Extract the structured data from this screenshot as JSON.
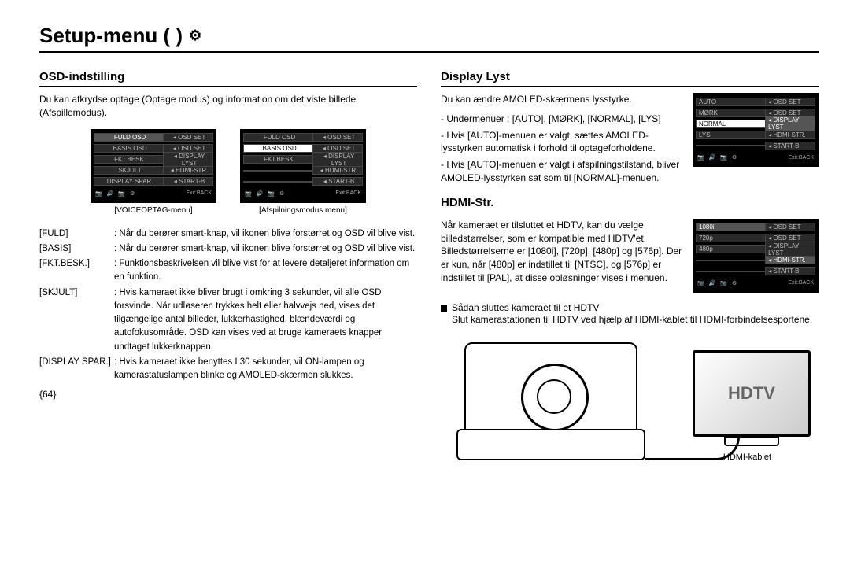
{
  "page": {
    "title": "Setup-menu (      )",
    "number": "{64}"
  },
  "left": {
    "heading": "OSD-indstilling",
    "intro": "Du kan afkrydse optage (Optage modus) og information om det viste billede (Afspillemodus).",
    "menu1": {
      "caption": "[VOICEOPTAG-menu]",
      "rows": [
        {
          "l": "FULD OSD",
          "r": "OSD SET",
          "lsel": true,
          "rsel": false,
          "ricon": "📷"
        },
        {
          "l": "BASIS OSD",
          "r": "OSD SET",
          "ricon": "▶"
        },
        {
          "l": "FKT.BESK.",
          "r": "DISPLAY LYST"
        },
        {
          "l": "SKJULT",
          "r": "HDMI-STR."
        },
        {
          "l": "DISPLAY SPAR.",
          "r": "START-B"
        }
      ],
      "footer_left": "📷 🔊 📷 ⚙",
      "footer_right": "Exit:BACK"
    },
    "menu2": {
      "caption": "[Afspilningsmodus menu]",
      "rows": [
        {
          "l": "FULD OSD",
          "r": "OSD SET",
          "ricon": "📷"
        },
        {
          "l": "BASIS OSD",
          "r": "OSD SET",
          "lhi": true,
          "ricon": "▶"
        },
        {
          "l": "FKT.BESK.",
          "r": "DISPLAY LYST"
        },
        {
          "l": "",
          "r": "HDMI-STR."
        },
        {
          "l": "",
          "r": "START-B"
        }
      ],
      "footer_left": "📷 🔊 📷 ⚙",
      "footer_right": "Exit:BACK"
    },
    "defs": [
      {
        "term": "[FULD]",
        "body": "Når du berører smart-knap, vil ikonen blive forstørret og OSD vil blive vist."
      },
      {
        "term": "[BASIS]",
        "body": "Når du berører smart-knap, vil ikonen blive forstørret og OSD vil blive vist."
      },
      {
        "term": "[FKT.BESK.]",
        "body": "Funktionsbeskrivelsen vil blive vist for at levere detaljeret information om en funktion."
      },
      {
        "term": "[SKJULT]",
        "body": "Hvis kameraet ikke bliver brugt i omkring 3 sekunder, vil alle OSD forsvinde. Når udløseren trykkes helt eller halvvejs ned, vises det tilgængelige antal billeder, lukkerhastighed, blændeværdi og autofokusområde. OSD kan vises ved at bruge kameraets knapper undtaget lukkerknappen."
      },
      {
        "term": "[DISPLAY SPAR.]",
        "body": "Hvis kameraet ikke benyttes I 30 sekunder, vil ON-lampen og kamerastatuslampen blinke og AMOLED-skærmen slukkes."
      }
    ]
  },
  "right": {
    "sec1": {
      "heading": "Display Lyst",
      "intro": "Du kan ændre AMOLED-skærmens lysstyrke.",
      "lines": [
        "- Undermenuer : [AUTO], [MØRK], [NORMAL], [LYS]",
        "- Hvis [AUTO]-menuen er valgt, sættes AMOLED-lysstyrken automatisk i forhold til optageforholdene.",
        "- Hvis [AUTO]-menuen er valgt i afspilningstilstand, bliver AMOLED-lysstyrken sat som til [NORMAL]-menuen."
      ],
      "menu": {
        "rows": [
          {
            "l": "AUTO",
            "r": "OSD SET",
            "ricon": "📷"
          },
          {
            "l": "MØRK",
            "r": "OSD SET",
            "ricon": "▶"
          },
          {
            "l": "NORMAL",
            "r": "DISPLAY LYST",
            "lhi": true,
            "rsel": true
          },
          {
            "l": "LYS",
            "r": "HDMI-STR."
          },
          {
            "l": "",
            "r": "START-B"
          }
        ],
        "footer_left": "📷 🔊 📷 ⚙",
        "footer_right": "Exit:BACK"
      }
    },
    "sec2": {
      "heading": "HDMI-Str.",
      "intro": "Når kameraet er tilsluttet et HDTV, kan du vælge billedstørrelser, som er kompatible med HDTV'et. Billedstørrelserne er [1080i], [720p], [480p] og [576p]. Der er kun, når [480p] er indstillet til [NTSC], og [576p] er indstillet til [PAL], at disse opløsninger vises i menuen.",
      "bullet": "Sådan sluttes kameraet til et HDTV",
      "bullet_body": "Slut kamerastationen til HDTV ved hjælp af HDMI-kablet til HDMI-forbindelsesportene.",
      "menu": {
        "rows": [
          {
            "l": "1080i",
            "r": "OSD SET",
            "lsel": true,
            "ricon": "📷"
          },
          {
            "l": "720p",
            "r": "OSD SET",
            "ricon": "▶"
          },
          {
            "l": "480p",
            "r": "DISPLAY LYST"
          },
          {
            "l": "",
            "r": "HDMI-STR.",
            "rsel": true
          },
          {
            "l": "",
            "r": "START-B"
          }
        ],
        "footer_left": "📷 🔊 📷 ⚙",
        "footer_right": "Exit:BACK"
      },
      "tv_label": "HDTV",
      "cable_label": "HDMI-kablet"
    }
  }
}
